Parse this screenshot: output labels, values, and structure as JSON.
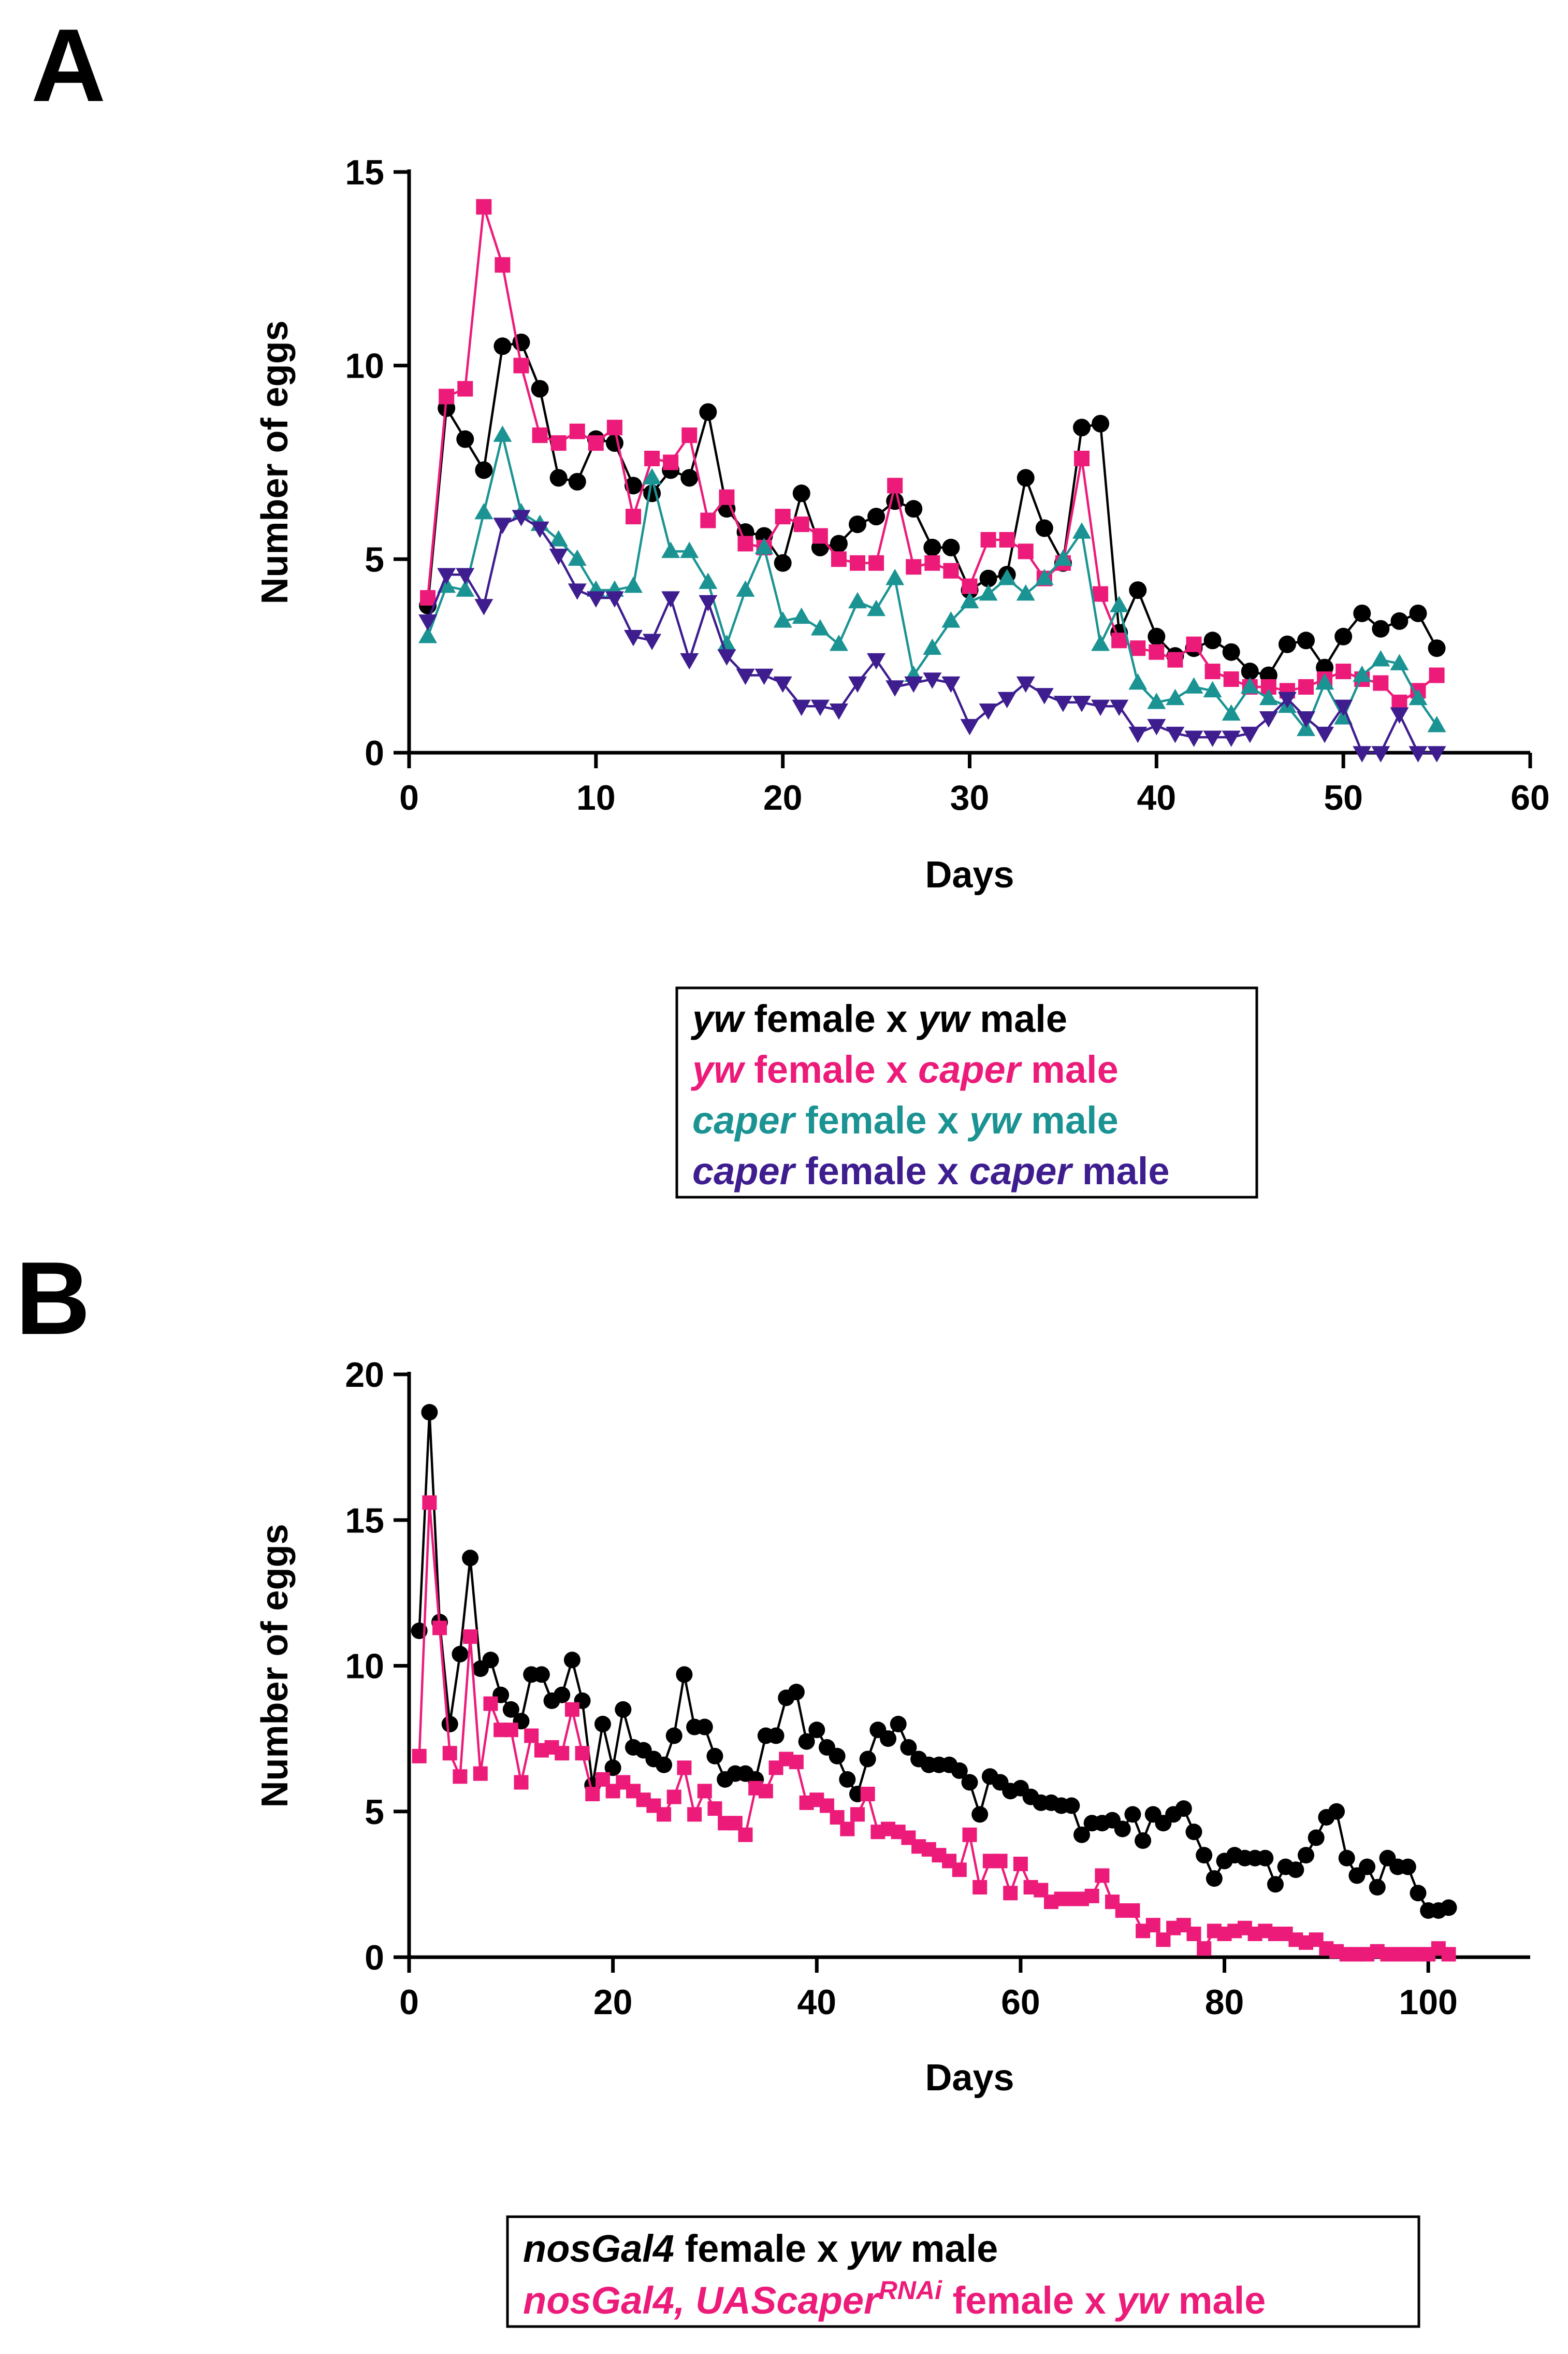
{
  "panels": [
    "A",
    "B"
  ],
  "chart_data": [
    {
      "type": "line",
      "panel_label": "A",
      "xlabel": "Days",
      "ylabel": "Number of eggs",
      "xlim": [
        0,
        60
      ],
      "ylim": [
        0,
        15
      ],
      "xticks": [
        0,
        10,
        20,
        30,
        40,
        50,
        60
      ],
      "yticks": [
        0,
        5,
        10,
        15
      ],
      "grid": false,
      "legend_position": "below",
      "x": [
        1,
        2,
        3,
        4,
        5,
        6,
        7,
        8,
        9,
        10,
        11,
        12,
        13,
        14,
        15,
        16,
        17,
        18,
        19,
        20,
        21,
        22,
        23,
        24,
        25,
        26,
        27,
        28,
        29,
        30,
        31,
        32,
        33,
        34,
        35,
        36,
        37,
        38,
        39,
        40,
        41,
        42,
        43,
        44,
        45,
        46,
        47,
        48,
        49,
        50,
        51,
        52,
        53,
        54,
        55
      ],
      "series": [
        {
          "legend": [
            {
              "t": "yw",
              "i": true
            },
            {
              "t": " female x ",
              "i": false
            },
            {
              "t": "yw",
              "i": true
            },
            {
              "t": " male",
              "i": false
            }
          ],
          "color": "#000000",
          "marker": "circle",
          "values": [
            3.8,
            8.9,
            8.1,
            7.3,
            10.5,
            10.6,
            9.4,
            7.1,
            7.0,
            8.1,
            8.0,
            6.9,
            6.7,
            7.3,
            7.1,
            8.8,
            6.3,
            5.7,
            5.6,
            4.9,
            6.7,
            5.3,
            5.4,
            5.9,
            6.1,
            6.5,
            6.3,
            5.3,
            5.3,
            4.2,
            4.5,
            4.6,
            7.1,
            5.8,
            4.9,
            8.4,
            8.5,
            3.1,
            4.2,
            3.0,
            2.5,
            2.7,
            2.9,
            2.6,
            2.1,
            2.0,
            2.8,
            2.9,
            2.2,
            3.0,
            3.6,
            3.2,
            3.4,
            3.6,
            2.7
          ]
        },
        {
          "legend": [
            {
              "t": "yw",
              "i": true
            },
            {
              "t": " female x ",
              "i": false
            },
            {
              "t": "caper",
              "i": true
            },
            {
              "t": " male",
              "i": false
            }
          ],
          "color": "#ec1b7a",
          "marker": "square",
          "values": [
            4.0,
            9.2,
            9.4,
            14.1,
            12.6,
            10.0,
            8.2,
            8.0,
            8.3,
            8.0,
            8.4,
            6.1,
            7.6,
            7.5,
            8.2,
            6.0,
            6.6,
            5.4,
            5.3,
            6.1,
            5.9,
            5.6,
            5.0,
            4.9,
            4.9,
            6.9,
            4.8,
            4.9,
            4.7,
            4.3,
            5.5,
            5.5,
            5.2,
            4.5,
            4.9,
            7.6,
            4.1,
            2.9,
            2.7,
            2.6,
            2.4,
            2.8,
            2.1,
            1.9,
            1.7,
            1.7,
            1.6,
            1.7,
            1.9,
            2.1,
            1.9,
            1.8,
            1.3,
            1.6,
            2.0
          ]
        },
        {
          "legend": [
            {
              "t": "caper",
              "i": true
            },
            {
              "t": " female x ",
              "i": false
            },
            {
              "t": "yw",
              "i": true
            },
            {
              "t": " male",
              "i": false
            }
          ],
          "color": "#1b9393",
          "marker": "triangle-up",
          "values": [
            3.0,
            4.3,
            4.2,
            6.2,
            8.2,
            6.2,
            5.9,
            5.5,
            5.0,
            4.2,
            4.2,
            4.3,
            7.1,
            5.2,
            5.2,
            4.4,
            2.8,
            4.2,
            5.3,
            3.4,
            3.5,
            3.2,
            2.8,
            3.9,
            3.7,
            4.5,
            2.0,
            2.7,
            3.4,
            3.9,
            4.1,
            4.5,
            4.1,
            4.5,
            5.0,
            5.7,
            2.8,
            3.8,
            1.8,
            1.3,
            1.4,
            1.7,
            1.6,
            1.0,
            1.7,
            1.4,
            1.2,
            0.6,
            1.8,
            0.9,
            2.0,
            2.4,
            2.3,
            1.4,
            0.7
          ]
        },
        {
          "legend": [
            {
              "t": "caper",
              "i": true
            },
            {
              "t": " female x ",
              "i": false
            },
            {
              "t": "caper",
              "i": true
            },
            {
              "t": " male",
              "i": false
            }
          ],
          "color": "#3e1d8f",
          "marker": "triangle-down",
          "values": [
            3.4,
            4.6,
            4.6,
            3.8,
            5.9,
            6.1,
            5.8,
            5.1,
            4.2,
            4.0,
            4.0,
            3.0,
            2.9,
            4.0,
            2.4,
            3.9,
            2.5,
            2.0,
            2.0,
            1.8,
            1.2,
            1.2,
            1.1,
            1.8,
            2.4,
            1.7,
            1.8,
            1.9,
            1.8,
            0.7,
            1.1,
            1.4,
            1.8,
            1.5,
            1.3,
            1.3,
            1.2,
            1.2,
            0.5,
            0.7,
            0.5,
            0.4,
            0.4,
            0.4,
            0.5,
            0.9,
            1.4,
            0.9,
            0.5,
            1.2,
            0.0,
            0.0,
            1.0,
            0.0,
            0.0
          ]
        }
      ]
    },
    {
      "type": "line",
      "panel_label": "B",
      "xlabel": "Days",
      "ylabel": "Number of eggs",
      "xlim": [
        0,
        110
      ],
      "ylim": [
        0,
        20
      ],
      "xticks": [
        0,
        20,
        40,
        60,
        80,
        100
      ],
      "yticks": [
        0,
        5,
        10,
        15,
        20
      ],
      "grid": false,
      "legend_position": "below",
      "x": [
        1,
        2,
        3,
        4,
        5,
        6,
        7,
        8,
        9,
        10,
        11,
        12,
        13,
        14,
        15,
        16,
        17,
        18,
        19,
        20,
        21,
        22,
        23,
        24,
        25,
        26,
        27,
        28,
        29,
        30,
        31,
        32,
        33,
        34,
        35,
        36,
        37,
        38,
        39,
        40,
        41,
        42,
        43,
        44,
        45,
        46,
        47,
        48,
        49,
        50,
        51,
        52,
        53,
        54,
        55,
        56,
        57,
        58,
        59,
        60,
        61,
        62,
        63,
        64,
        65,
        66,
        67,
        68,
        69,
        70,
        71,
        72,
        73,
        74,
        75,
        76,
        77,
        78,
        79,
        80,
        81,
        82,
        83,
        84,
        85,
        86,
        87,
        88,
        89,
        90,
        91,
        92,
        93,
        94,
        95,
        96,
        97,
        98,
        99,
        100,
        101,
        102
      ],
      "series": [
        {
          "legend": [
            {
              "t": "nosGal4",
              "i": true
            },
            {
              "t": " female x ",
              "i": false
            },
            {
              "t": "yw",
              "i": true
            },
            {
              "t": " male",
              "i": false
            }
          ],
          "color": "#000000",
          "marker": "circle",
          "values": [
            11.2,
            18.7,
            11.5,
            8.0,
            10.4,
            13.7,
            9.9,
            10.2,
            9.0,
            8.5,
            8.1,
            9.7,
            9.7,
            8.8,
            9.0,
            10.2,
            8.8,
            5.9,
            8.0,
            6.5,
            8.5,
            7.2,
            7.1,
            6.8,
            6.6,
            7.6,
            9.7,
            7.9,
            7.9,
            6.9,
            6.1,
            6.3,
            6.3,
            6.1,
            7.6,
            7.6,
            8.9,
            9.1,
            7.4,
            7.8,
            7.2,
            6.9,
            6.1,
            5.6,
            6.8,
            7.8,
            7.5,
            8.0,
            7.2,
            6.8,
            6.6,
            6.6,
            6.6,
            6.4,
            6.0,
            4.9,
            6.2,
            6.0,
            5.7,
            5.8,
            5.5,
            5.3,
            5.3,
            5.2,
            5.2,
            4.2,
            4.6,
            4.6,
            4.7,
            4.4,
            4.9,
            4.0,
            4.9,
            4.6,
            4.9,
            5.1,
            4.3,
            3.5,
            2.7,
            3.3,
            3.5,
            3.4,
            3.4,
            3.4,
            2.5,
            3.1,
            3.0,
            3.5,
            4.1,
            4.8,
            5.0,
            3.4,
            2.8,
            3.1,
            2.4,
            3.4,
            3.1,
            3.1,
            2.2,
            1.6,
            1.6,
            1.7
          ]
        },
        {
          "legend": [
            {
              "t": "nosGal4, UAScaper",
              "i": true
            },
            {
              "t": "RNAi",
              "i": true,
              "sup": true
            },
            {
              "t": " female x ",
              "i": false
            },
            {
              "t": "yw",
              "i": true
            },
            {
              "t": " male",
              "i": false
            }
          ],
          "color": "#ec1b7a",
          "marker": "square",
          "values": [
            6.9,
            15.6,
            11.3,
            7.0,
            6.2,
            11.0,
            6.3,
            8.7,
            7.8,
            7.8,
            6.0,
            7.6,
            7.1,
            7.2,
            7.0,
            8.5,
            7.0,
            5.6,
            6.1,
            5.7,
            6.0,
            5.7,
            5.4,
            5.2,
            4.9,
            5.5,
            6.5,
            4.9,
            5.7,
            5.1,
            4.6,
            4.6,
            4.2,
            5.8,
            5.7,
            6.5,
            6.8,
            6.7,
            5.3,
            5.4,
            5.2,
            4.8,
            4.4,
            4.9,
            5.6,
            4.3,
            4.4,
            4.3,
            4.1,
            3.8,
            3.7,
            3.5,
            3.3,
            3.0,
            4.2,
            2.4,
            3.3,
            3.3,
            2.2,
            3.2,
            2.4,
            2.3,
            1.9,
            2.0,
            2.0,
            2.0,
            2.1,
            2.8,
            1.9,
            1.6,
            1.6,
            0.9,
            1.1,
            0.6,
            1.0,
            1.1,
            0.8,
            0.3,
            0.9,
            0.8,
            0.9,
            1.0,
            0.8,
            0.9,
            0.8,
            0.8,
            0.6,
            0.5,
            0.6,
            0.3,
            0.2,
            0.1,
            0.1,
            0.1,
            0.2,
            0.1,
            0.1,
            0.1,
            0.1,
            0.1,
            0.3,
            0.1
          ]
        }
      ]
    }
  ]
}
